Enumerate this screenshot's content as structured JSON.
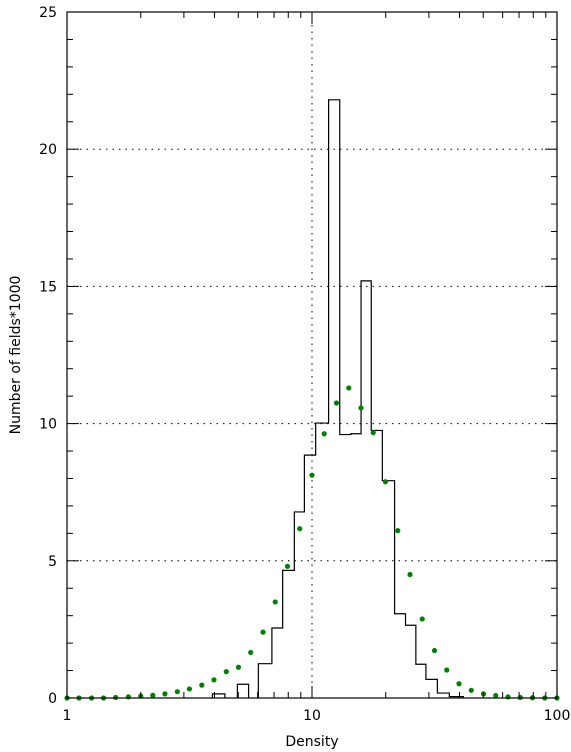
{
  "chart_data": {
    "type": "histogram",
    "title": "",
    "xlabel": "Density",
    "ylabel": "Number of fields*1000",
    "xscale": "log",
    "xlim": [
      1,
      100
    ],
    "ylim": [
      0,
      25
    ],
    "x_tick_labels": [
      "1",
      "10",
      "100"
    ],
    "y_tick_labels": [
      "0",
      "5",
      "10",
      "15",
      "20",
      "25"
    ],
    "grid": "dotted horizontal at 5, 10, 15, 20 and vertical at 10",
    "histogram": {
      "bins": [
        {
          "x0": 3.92,
          "x1": 4.41,
          "y": 0.15
        },
        {
          "x0": 4.96,
          "x1": 5.51,
          "y": 0.5
        },
        {
          "x0": 6.04,
          "x1": 6.86,
          "y": 1.25
        },
        {
          "x0": 6.86,
          "x1": 7.59,
          "y": 2.55
        },
        {
          "x0": 7.59,
          "x1": 8.47,
          "y": 4.65
        },
        {
          "x0": 8.47,
          "x1": 9.31,
          "y": 6.78
        },
        {
          "x0": 9.31,
          "x1": 10.35,
          "y": 8.85
        },
        {
          "x0": 10.35,
          "x1": 11.69,
          "y": 10.02
        },
        {
          "x0": 11.69,
          "x1": 12.98,
          "y": 21.8
        },
        {
          "x0": 12.98,
          "x1": 14.4,
          "y": 9.6
        },
        {
          "x0": 14.4,
          "x1": 15.86,
          "y": 9.63
        },
        {
          "x0": 15.86,
          "x1": 17.45,
          "y": 15.2
        },
        {
          "x0": 17.45,
          "x1": 19.37,
          "y": 9.75
        },
        {
          "x0": 19.37,
          "x1": 21.73,
          "y": 7.92
        },
        {
          "x0": 21.73,
          "x1": 24.08,
          "y": 3.07
        },
        {
          "x0": 24.08,
          "x1": 26.54,
          "y": 2.65
        },
        {
          "x0": 26.54,
          "x1": 29.17,
          "y": 1.23
        },
        {
          "x0": 29.17,
          "x1": 32.49,
          "y": 0.68
        },
        {
          "x0": 32.49,
          "x1": 36.35,
          "y": 0.18
        },
        {
          "x0": 36.35,
          "x1": 41.48,
          "y": 0.05
        }
      ]
    },
    "points": {
      "color": "#008000",
      "x": [
        1.0,
        1.12,
        1.26,
        1.41,
        1.58,
        1.78,
        2.0,
        2.24,
        2.51,
        2.82,
        3.16,
        3.55,
        3.98,
        4.47,
        5.01,
        5.62,
        6.31,
        7.08,
        7.94,
        8.91,
        10.0,
        11.22,
        12.59,
        14.13,
        15.85,
        17.78,
        19.95,
        22.39,
        25.12,
        28.18,
        31.62,
        35.48,
        39.81,
        44.67,
        50.12,
        56.23,
        63.1,
        70.79,
        79.43,
        89.13,
        100.0
      ],
      "y": [
        0.0,
        0.0,
        0.0,
        0.0,
        0.02,
        0.04,
        0.07,
        0.1,
        0.15,
        0.23,
        0.33,
        0.47,
        0.66,
        0.96,
        1.12,
        1.66,
        2.4,
        3.5,
        4.8,
        6.17,
        8.12,
        9.63,
        10.75,
        11.3,
        10.57,
        9.67,
        7.88,
        6.1,
        4.5,
        2.88,
        1.73,
        1.02,
        0.52,
        0.28,
        0.15,
        0.09,
        0.04,
        0.02,
        0.01,
        0.0,
        0.0
      ]
    }
  }
}
